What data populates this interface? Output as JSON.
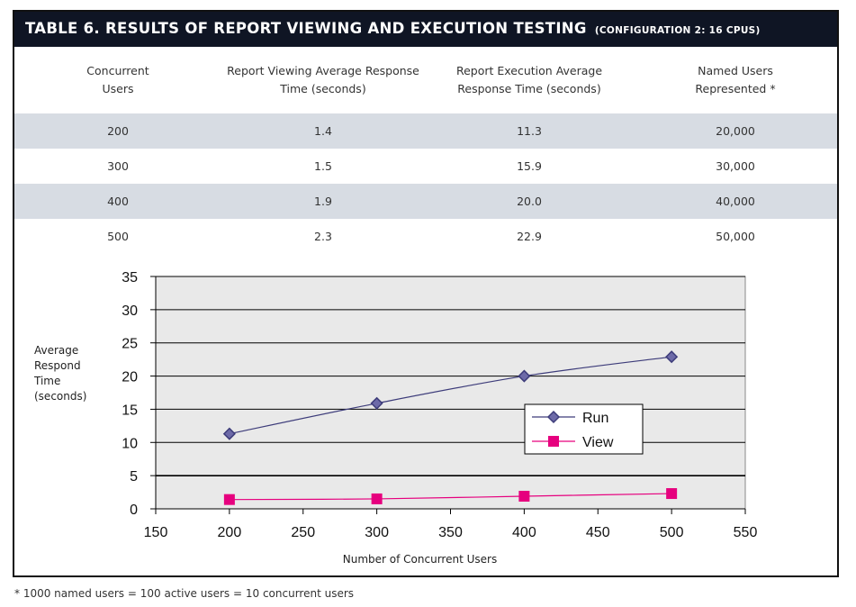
{
  "title": {
    "main": "TABLE 6. RESULTS OF REPORT VIEWING AND EXECUTION TESTING",
    "sub": "(CONFIGURATION 2: 16 CPUS)"
  },
  "table": {
    "headers": [
      "Concurrent\nUsers",
      "Report Viewing Average Response\nTime  (seconds)",
      "Report Execution Average\nResponse Time (seconds)",
      "Named Users\nRepresented *"
    ],
    "rows": [
      [
        "200",
        "1.4",
        "11.3",
        "20,000"
      ],
      [
        "300",
        "1.5",
        "15.9",
        "30,000"
      ],
      [
        "400",
        "1.9",
        "20.0",
        "40,000"
      ],
      [
        "500",
        "2.3",
        "22.9",
        "50,000"
      ]
    ]
  },
  "chart_data": {
    "type": "line",
    "xlabel": "Number of Concurrent Users",
    "ylabel": [
      "Average",
      "Respond",
      "Time",
      "(seconds)"
    ],
    "xlim": [
      150,
      550
    ],
    "ylim": [
      0,
      35
    ],
    "xticks": [
      150,
      200,
      250,
      300,
      350,
      400,
      450,
      500,
      550
    ],
    "yticks": [
      0,
      5,
      10,
      15,
      20,
      25,
      30,
      35
    ],
    "grid": "horizontal",
    "legend_position": "center-right",
    "x": [
      200,
      300,
      400,
      500
    ],
    "series": [
      {
        "name": "Run",
        "values": [
          11.3,
          15.9,
          20.0,
          22.9
        ],
        "color": "#3d3c7a",
        "marker": "diamond"
      },
      {
        "name": "View",
        "values": [
          1.4,
          1.5,
          1.9,
          2.3
        ],
        "color": "#e6007e",
        "marker": "square"
      }
    ]
  },
  "footnote": "* 1000 named users = 100 active users = 10 concurrent users",
  "colors": {
    "title_bg": "#0f1524",
    "row_shade": "#d7dce3",
    "plot_bg": "#e9e9e9"
  }
}
